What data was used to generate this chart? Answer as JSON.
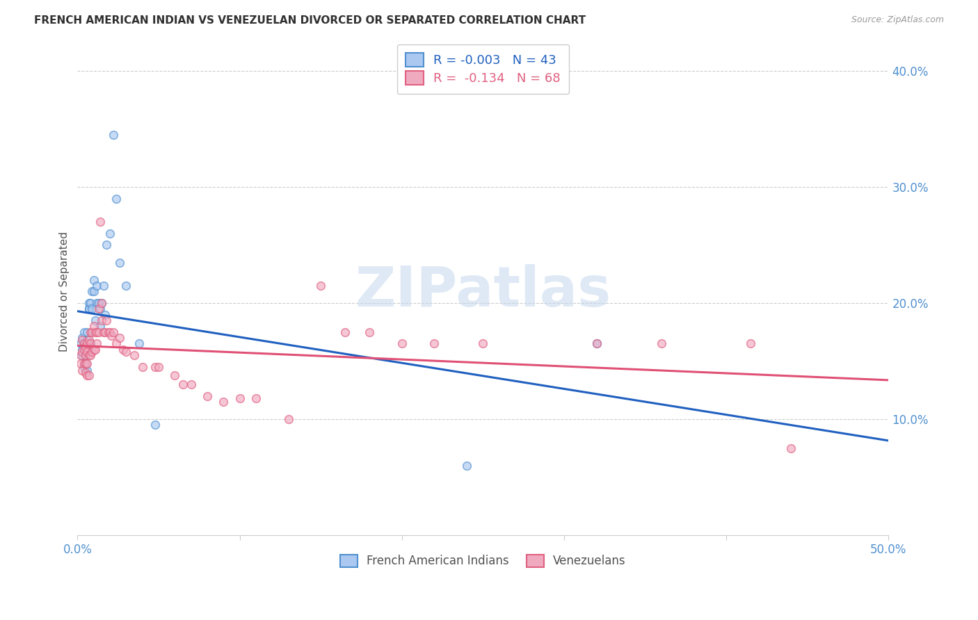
{
  "title": "FRENCH AMERICAN INDIAN VS VENEZUELAN DIVORCED OR SEPARATED CORRELATION CHART",
  "source": "Source: ZipAtlas.com",
  "ylabel": "Divorced or Separated",
  "legend_blue_label": "French American Indians",
  "legend_pink_label": "Venezuelans",
  "legend_blue_text": "R = -0.003   N = 43",
  "legend_pink_text": "R =  -0.134   N = 68",
  "xlim": [
    0.0,
    0.5
  ],
  "ylim": [
    0.0,
    0.42
  ],
  "yticks": [
    0.1,
    0.2,
    0.3,
    0.4
  ],
  "ytick_labels": [
    "10.0%",
    "20.0%",
    "30.0%",
    "40.0%"
  ],
  "xticks": [
    0.0,
    0.1,
    0.2,
    0.3,
    0.4,
    0.5
  ],
  "xtick_labels": [
    "0.0%",
    "",
    "",
    "",
    "",
    "50.0%"
  ],
  "watermark_text": "ZIPatlas",
  "blue_scatter_x": [
    0.002,
    0.003,
    0.003,
    0.003,
    0.004,
    0.004,
    0.004,
    0.005,
    0.005,
    0.005,
    0.005,
    0.006,
    0.006,
    0.006,
    0.006,
    0.007,
    0.007,
    0.007,
    0.008,
    0.008,
    0.009,
    0.009,
    0.01,
    0.01,
    0.011,
    0.012,
    0.012,
    0.013,
    0.014,
    0.014,
    0.015,
    0.016,
    0.017,
    0.018,
    0.02,
    0.022,
    0.024,
    0.026,
    0.03,
    0.038,
    0.048,
    0.32,
    0.24
  ],
  "blue_scatter_y": [
    0.165,
    0.17,
    0.16,
    0.155,
    0.175,
    0.165,
    0.145,
    0.165,
    0.16,
    0.155,
    0.148,
    0.168,
    0.175,
    0.165,
    0.142,
    0.195,
    0.2,
    0.195,
    0.2,
    0.165,
    0.195,
    0.21,
    0.22,
    0.21,
    0.185,
    0.2,
    0.215,
    0.2,
    0.195,
    0.18,
    0.2,
    0.215,
    0.19,
    0.25,
    0.26,
    0.345,
    0.29,
    0.235,
    0.215,
    0.165,
    0.095,
    0.165,
    0.06
  ],
  "pink_scatter_x": [
    0.002,
    0.002,
    0.003,
    0.003,
    0.003,
    0.004,
    0.004,
    0.004,
    0.005,
    0.005,
    0.005,
    0.005,
    0.006,
    0.006,
    0.006,
    0.006,
    0.007,
    0.007,
    0.007,
    0.008,
    0.008,
    0.008,
    0.009,
    0.009,
    0.01,
    0.01,
    0.011,
    0.011,
    0.012,
    0.012,
    0.013,
    0.013,
    0.014,
    0.015,
    0.015,
    0.016,
    0.017,
    0.018,
    0.019,
    0.02,
    0.021,
    0.022,
    0.024,
    0.026,
    0.028,
    0.03,
    0.035,
    0.04,
    0.048,
    0.05,
    0.06,
    0.065,
    0.07,
    0.08,
    0.09,
    0.1,
    0.11,
    0.13,
    0.15,
    0.165,
    0.18,
    0.2,
    0.22,
    0.25,
    0.32,
    0.36,
    0.415,
    0.44
  ],
  "pink_scatter_y": [
    0.155,
    0.148,
    0.158,
    0.168,
    0.142,
    0.16,
    0.165,
    0.148,
    0.162,
    0.155,
    0.148,
    0.14,
    0.165,
    0.158,
    0.148,
    0.138,
    0.168,
    0.155,
    0.138,
    0.175,
    0.165,
    0.155,
    0.175,
    0.158,
    0.18,
    0.16,
    0.175,
    0.16,
    0.175,
    0.165,
    0.195,
    0.175,
    0.27,
    0.2,
    0.185,
    0.175,
    0.175,
    0.185,
    0.175,
    0.175,
    0.172,
    0.175,
    0.165,
    0.17,
    0.16,
    0.158,
    0.155,
    0.145,
    0.145,
    0.145,
    0.138,
    0.13,
    0.13,
    0.12,
    0.115,
    0.118,
    0.118,
    0.1,
    0.215,
    0.175,
    0.175,
    0.165,
    0.165,
    0.165,
    0.165,
    0.165,
    0.165,
    0.075
  ],
  "blue_color": "#aac8f0",
  "pink_color": "#f0aac0",
  "blue_edge_color": "#5090d0",
  "pink_edge_color": "#e06080",
  "blue_line_color": "#2060c0",
  "pink_line_color": "#e05075",
  "title_color": "#303030",
  "axis_tick_color": "#5090d0",
  "grid_color": "#cccccc",
  "bg_color": "#ffffff",
  "scatter_size": 70,
  "scatter_alpha": 0.65,
  "scatter_linewidth": 1.2
}
